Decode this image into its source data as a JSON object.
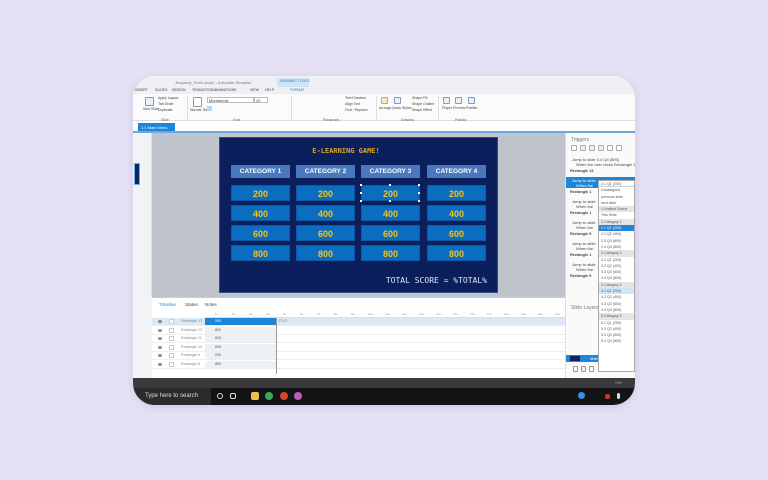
{
  "window": {
    "title": "Jeopardy_Part1.story* - Articulate Storyline",
    "context_tab": "DRAWING TOOLS"
  },
  "ribbon_tabs": [
    "INSERT",
    "SLIDES",
    "DESIGN",
    "TRANSITIONS",
    "ANIMATIONS",
    "VIEW",
    "HELP",
    "FORMAT"
  ],
  "ribbon": {
    "slide_group": {
      "new_slide": "New Slide",
      "apply_layout": "Apply Layout",
      "tab_order": "Tab Order",
      "duplicate": "Duplicate",
      "label": "Slide"
    },
    "normal_text": "Normal Text",
    "font_name": "Montserrat",
    "font_size": "20",
    "font_label": "Font",
    "text_direction": "Text Direction",
    "align_text": "Align Text",
    "find_replace": "Find / Replace",
    "paragraph_label": "Paragraph",
    "arrange": "Arrange",
    "quick_styles": "Quick Styles",
    "shape_fill": "Shape Fill",
    "shape_outline": "Shape Outline",
    "shape_effect": "Shape Effect",
    "drawing_label": "Drawing",
    "player": "Player",
    "preview": "Preview",
    "publish": "Publish",
    "publish_label": "Publish"
  },
  "slide_tab": "1.1 Main Menu",
  "slide": {
    "title": "E-LEARNING GAME!",
    "categories": [
      "CATEGORY 1",
      "CATEGORY 2",
      "CATEGORY 3",
      "CATEGORY 4"
    ],
    "values": [
      "200",
      "400",
      "600",
      "800"
    ],
    "total": "TOTAL SCORE = %TOTAL%",
    "colors": {
      "bg": "#0a1f5c",
      "header": "#4a78bd",
      "tile": "#0a6dc0",
      "text": "#f7c31b"
    }
  },
  "timeline": {
    "tabs": [
      "Timeline",
      "States",
      "Notes"
    ],
    "ruler": [
      "1s",
      "2s",
      "3s",
      "4s",
      "5s",
      "6s",
      "7s",
      "8s",
      "9s",
      "10s",
      "11s",
      "12s",
      "13s",
      "14s",
      "15s",
      "16s",
      "17s",
      "18s",
      "19s",
      "20s",
      "21s"
    ],
    "end_label": "End",
    "rows": [
      {
        "name": "Rectangle 13",
        "value": "200"
      },
      {
        "name": "Rectangle 12",
        "value": "800"
      },
      {
        "name": "Rectangle 11",
        "value": "600"
      },
      {
        "name": "Rectangle 10",
        "value": "600"
      },
      {
        "name": "Rectangle 9",
        "value": "200"
      },
      {
        "name": "Rectangle 8",
        "value": "800"
      }
    ]
  },
  "triggers": {
    "title": "Triggers",
    "items": [
      {
        "text": "Jump to slide 3.4 Q4 (800)",
        "sub": "When the user clicks Rectangle 12"
      },
      {
        "header": "Rectangle 13"
      },
      {
        "text": "Jump to slide",
        "sub": "When the",
        "selected": true
      },
      {
        "header": "Rectangle 1"
      },
      {
        "text": "Jump to slide",
        "sub": "When the"
      },
      {
        "header": "Rectangle 1"
      },
      {
        "text": "Jump to slide",
        "sub": "When the"
      },
      {
        "header": "Rectangle 9"
      },
      {
        "text": "Jump to slide",
        "sub": "When the"
      },
      {
        "header": "Rectangle 1"
      },
      {
        "text": "Jump to slide",
        "sub": "When the"
      },
      {
        "header": "Rectangle 9"
      }
    ],
    "slide_layers": "Slide Layers",
    "base_layer": "Main M",
    "dim": "Dim"
  },
  "dropdown": {
    "current": "2.1 Q1 (200)",
    "options": [
      {
        "t": "Unassigned"
      },
      {
        "t": "previous slide"
      },
      {
        "t": "next slide"
      },
      {
        "t": "1 Untitled Scene",
        "g": true
      },
      {
        "t": "This Slide"
      },
      {
        "t": "2 Category 1",
        "g": true
      },
      {
        "t": "2.1 Q1 (200)",
        "s": true
      },
      {
        "t": "2.2 Q2 (400)"
      },
      {
        "t": "2.3 Q3 (600)"
      },
      {
        "t": "2.4 Q4 (800)"
      },
      {
        "t": "3 Category 2",
        "g": true
      },
      {
        "t": "3.1 Q1 (200)"
      },
      {
        "t": "3.2 Q2 (400)"
      },
      {
        "t": "3.3 Q3 (600)"
      },
      {
        "t": "3.4 Q4 (800)"
      },
      {
        "t": "4 Category 4",
        "g": true
      },
      {
        "t": "4.1 Q1 (200)",
        "h": true
      },
      {
        "t": "4.2 Q2 (400)"
      },
      {
        "t": "4.3 Q3 (600)"
      },
      {
        "t": "4.4 Q4 (800)"
      },
      {
        "t": "5 Category 3",
        "g": true
      },
      {
        "t": "5.1 Q1 (200)"
      },
      {
        "t": "5.2 Q2 (400)"
      },
      {
        "t": "5.3 Q3 (600)"
      },
      {
        "t": "5.4 Q4 (800)"
      }
    ]
  },
  "statusbar": {
    "zoom": "10%"
  },
  "taskbar": {
    "search": "Type here to search"
  }
}
